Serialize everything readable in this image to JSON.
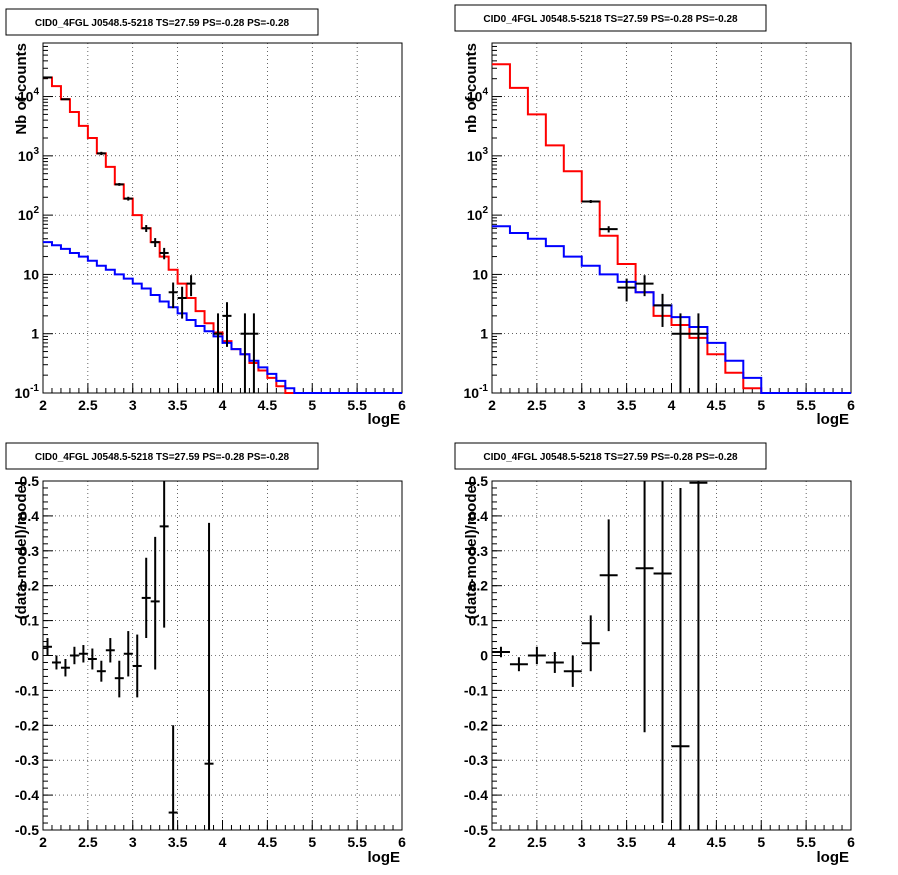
{
  "chart_data": [
    {
      "type": "line",
      "title": "CID0_4FGL J0548.5-5218 TS=27.59 PS=-0.28 PS=-0.28",
      "xlabel": "logE",
      "ylabel": "Nb of counts",
      "xlim": [
        2,
        6
      ],
      "ylim": [
        0.1,
        80000
      ],
      "yscale": "log",
      "grid": true,
      "x_ticks": [
        "2",
        "2.5",
        "3",
        "3.5",
        "4",
        "4.5",
        "5",
        "5.5",
        "6"
      ],
      "y_ticks": [
        {
          "value": 0.1,
          "base": "10",
          "exp": "-1"
        },
        {
          "value": 1,
          "label": "1"
        },
        {
          "value": 10,
          "label": "10"
        },
        {
          "value": 100,
          "base": "10",
          "exp": "2"
        },
        {
          "value": 1000,
          "base": "10",
          "exp": "3"
        },
        {
          "value": 10000,
          "base": "10",
          "exp": "4"
        }
      ],
      "series": [
        {
          "color": "#ff0000",
          "style": "step",
          "edges": [
            2.0,
            2.1,
            2.2,
            2.3,
            2.4,
            2.5,
            2.6,
            2.7,
            2.8,
            2.9,
            3.0,
            3.1,
            3.2,
            3.3,
            3.4,
            3.5,
            3.6,
            3.7,
            3.8,
            3.9,
            4.0,
            4.1,
            4.2,
            4.3,
            4.4,
            4.5,
            4.6,
            4.7,
            4.8,
            4.9,
            5.0,
            5.1,
            5.2,
            5.3,
            5.4,
            5.5,
            5.6,
            5.7,
            5.8,
            5.9,
            6.0
          ],
          "values": [
            21000,
            15000,
            9000,
            5500,
            3200,
            2000,
            1100,
            650,
            330,
            190,
            100,
            60,
            35,
            20,
            12,
            7,
            4,
            2.4,
            1.5,
            1.05,
            0.75,
            0.55,
            0.45,
            0.32,
            0.24,
            0.18,
            0.13,
            0.1,
            0.1,
            0.1,
            0.1,
            0.1,
            0.1,
            0.1,
            0.1,
            0.1,
            0.1,
            0.1,
            0.1,
            0.1
          ]
        },
        {
          "color": "#0000ff",
          "style": "step",
          "edges": [
            2.0,
            2.1,
            2.2,
            2.3,
            2.4,
            2.5,
            2.6,
            2.7,
            2.8,
            2.9,
            3.0,
            3.1,
            3.2,
            3.3,
            3.4,
            3.5,
            3.6,
            3.7,
            3.8,
            3.9,
            4.0,
            4.1,
            4.2,
            4.3,
            4.4,
            4.5,
            4.6,
            4.7,
            4.8,
            4.9,
            5.0,
            5.1,
            5.2,
            5.3,
            5.4,
            5.5,
            5.6,
            5.7,
            5.8,
            5.9,
            6.0
          ],
          "values": [
            35,
            31,
            27,
            23,
            20,
            17,
            14,
            12,
            10,
            8.5,
            7,
            5.8,
            4.5,
            3.5,
            2.8,
            2.2,
            1.7,
            1.35,
            1.1,
            0.9,
            0.7,
            0.55,
            0.45,
            0.35,
            0.27,
            0.21,
            0.16,
            0.12,
            0.1,
            0.1,
            0.1,
            0.1,
            0.1,
            0.1,
            0.1,
            0.1,
            0.1,
            0.1,
            0.1,
            0.1
          ]
        }
      ],
      "points": [
        {
          "x": 2.05,
          "y": 21000,
          "ylo": 20700,
          "yhi": 21300
        },
        {
          "x": 2.25,
          "y": 9000,
          "ylo": 8800,
          "yhi": 9200
        },
        {
          "x": 2.65,
          "y": 1100,
          "ylo": 1030,
          "yhi": 1170
        },
        {
          "x": 2.85,
          "y": 330,
          "ylo": 312,
          "yhi": 348
        },
        {
          "x": 2.95,
          "y": 190,
          "ylo": 176,
          "yhi": 204
        },
        {
          "x": 3.15,
          "y": 60,
          "ylo": 52,
          "yhi": 68
        },
        {
          "x": 3.25,
          "y": 35,
          "ylo": 29,
          "yhi": 41
        },
        {
          "x": 3.35,
          "y": 23,
          "ylo": 18,
          "yhi": 28
        },
        {
          "x": 3.45,
          "y": 5,
          "ylo": 2.7,
          "yhi": 7.3
        },
        {
          "x": 3.55,
          "y": 4,
          "ylo": 1.8,
          "yhi": 6.2
        },
        {
          "x": 3.65,
          "y": 7,
          "ylo": 4.3,
          "yhi": 9.7
        },
        {
          "x": 3.95,
          "y": 1,
          "ylo": 0.1,
          "yhi": 2.2
        },
        {
          "x": 4.05,
          "y": 2,
          "ylo": 0.6,
          "yhi": 3.4
        },
        {
          "x": 4.25,
          "y": 1,
          "ylo": 0.1,
          "yhi": 2.2
        },
        {
          "x": 4.35,
          "y": 1,
          "ylo": 0.1,
          "yhi": 2.2
        }
      ]
    },
    {
      "type": "line",
      "title": "CID0_4FGL J0548.5-5218 TS=27.59 PS=-0.28 PS=-0.28",
      "xlabel": "logE",
      "ylabel": "nb of counts",
      "xlim": [
        2,
        6
      ],
      "ylim": [
        0.1,
        80000
      ],
      "yscale": "log",
      "grid": true,
      "x_ticks": [
        "2",
        "2.5",
        "3",
        "3.5",
        "4",
        "4.5",
        "5",
        "5.5",
        "6"
      ],
      "y_ticks": [
        {
          "value": 0.1,
          "base": "10",
          "exp": "-1"
        },
        {
          "value": 1,
          "label": "1"
        },
        {
          "value": 10,
          "label": "10"
        },
        {
          "value": 100,
          "base": "10",
          "exp": "2"
        },
        {
          "value": 1000,
          "base": "10",
          "exp": "3"
        },
        {
          "value": 10000,
          "base": "10",
          "exp": "4"
        }
      ],
      "series": [
        {
          "color": "#ff0000",
          "style": "step",
          "edges": [
            2.0,
            2.2,
            2.4,
            2.6,
            2.8,
            3.0,
            3.2,
            3.4,
            3.6,
            3.8,
            4.0,
            4.2,
            4.4,
            4.6,
            4.8,
            5.0,
            5.2,
            5.4,
            5.6,
            5.8,
            6.0
          ],
          "values": [
            35000,
            14000,
            5000,
            1500,
            550,
            170,
            45,
            15,
            5,
            2,
            1.4,
            0.85,
            0.45,
            0.22,
            0.12,
            0.1,
            0.1,
            0.1,
            0.1,
            0.1
          ]
        },
        {
          "color": "#0000ff",
          "style": "step",
          "edges": [
            2.0,
            2.2,
            2.4,
            2.6,
            2.8,
            3.0,
            3.2,
            3.4,
            3.6,
            3.8,
            4.0,
            4.2,
            4.4,
            4.6,
            4.8,
            5.0,
            5.2,
            5.4,
            5.6,
            5.8,
            6.0
          ],
          "values": [
            65,
            50,
            40,
            30,
            20,
            14,
            10,
            7.5,
            5,
            3,
            1.9,
            1.3,
            0.7,
            0.35,
            0.18,
            0.1,
            0.1,
            0.1,
            0.1,
            0.1
          ]
        }
      ],
      "points": [
        {
          "x": 3.1,
          "y": 170,
          "ylo": 160,
          "yhi": 180
        },
        {
          "x": 3.3,
          "y": 58,
          "ylo": 51,
          "yhi": 65
        },
        {
          "x": 3.5,
          "y": 6,
          "ylo": 3.5,
          "yhi": 8.5
        },
        {
          "x": 3.7,
          "y": 7,
          "ylo": 4.3,
          "yhi": 9.7
        },
        {
          "x": 3.9,
          "y": 3,
          "ylo": 1.3,
          "yhi": 4.7
        },
        {
          "x": 4.1,
          "y": 1,
          "ylo": 0.1,
          "yhi": 2.2
        },
        {
          "x": 4.3,
          "y": 1,
          "ylo": 0.1,
          "yhi": 2.2
        }
      ]
    },
    {
      "type": "scatter",
      "title": "CID0_4FGL J0548.5-5218 TS=27.59 PS=-0.28 PS=-0.28",
      "xlabel": "logE",
      "ylabel": "(data-model)/model",
      "xlim": [
        2,
        6
      ],
      "ylim": [
        -0.5,
        0.5
      ],
      "grid": true,
      "x_ticks": [
        "2",
        "2.5",
        "3",
        "3.5",
        "4",
        "4.5",
        "5",
        "5.5",
        "6"
      ],
      "y_ticks": [
        "-0.5",
        "-0.4",
        "-0.3",
        "-0.2",
        "-0.1",
        "0",
        "0.1",
        "0.2",
        "0.3",
        "0.4",
        "0.5"
      ],
      "points": [
        {
          "x": 2.05,
          "y": 0.025,
          "ylo": 0.0,
          "yhi": 0.05
        },
        {
          "x": 2.15,
          "y": -0.02,
          "ylo": -0.04,
          "yhi": 0.0
        },
        {
          "x": 2.25,
          "y": -0.035,
          "ylo": -0.06,
          "yhi": -0.01
        },
        {
          "x": 2.35,
          "y": 0.0,
          "ylo": -0.025,
          "yhi": 0.025
        },
        {
          "x": 2.45,
          "y": 0.005,
          "ylo": -0.02,
          "yhi": 0.03
        },
        {
          "x": 2.55,
          "y": -0.01,
          "ylo": -0.04,
          "yhi": 0.02
        },
        {
          "x": 2.65,
          "y": -0.045,
          "ylo": -0.075,
          "yhi": -0.015
        },
        {
          "x": 2.75,
          "y": 0.015,
          "ylo": -0.02,
          "yhi": 0.05
        },
        {
          "x": 2.85,
          "y": -0.065,
          "ylo": -0.12,
          "yhi": -0.015
        },
        {
          "x": 2.95,
          "y": 0.005,
          "ylo": -0.06,
          "yhi": 0.07
        },
        {
          "x": 3.05,
          "y": -0.03,
          "ylo": -0.12,
          "yhi": 0.06
        },
        {
          "x": 3.15,
          "y": 0.165,
          "ylo": 0.05,
          "yhi": 0.28
        },
        {
          "x": 3.25,
          "y": 0.155,
          "ylo": -0.04,
          "yhi": 0.34
        },
        {
          "x": 3.35,
          "y": 0.37,
          "ylo": 0.08,
          "yhi": 0.5
        },
        {
          "x": 3.45,
          "y": -0.45,
          "ylo": -0.5,
          "yhi": -0.2
        },
        {
          "x": 3.85,
          "y": -0.31,
          "ylo": -0.5,
          "yhi": 0.38
        }
      ]
    },
    {
      "type": "scatter",
      "title": "CID0_4FGL J0548.5-5218 TS=27.59 PS=-0.28 PS=-0.28",
      "xlabel": "logE",
      "ylabel": "(data-model)/model",
      "xlim": [
        2,
        6
      ],
      "ylim": [
        -0.5,
        0.5
      ],
      "grid": true,
      "x_ticks": [
        "2",
        "2.5",
        "3",
        "3.5",
        "4",
        "4.5",
        "5",
        "5.5",
        "6"
      ],
      "y_ticks": [
        "-0.5",
        "-0.4",
        "-0.3",
        "-0.2",
        "-0.1",
        "0",
        "0.1",
        "0.2",
        "0.3",
        "0.4",
        "0.5"
      ],
      "points": [
        {
          "x": 2.1,
          "y": 0.01,
          "ylo": -0.005,
          "yhi": 0.025
        },
        {
          "x": 2.3,
          "y": -0.025,
          "ylo": -0.045,
          "yhi": -0.005
        },
        {
          "x": 2.5,
          "y": 0.0,
          "ylo": -0.025,
          "yhi": 0.025
        },
        {
          "x": 2.7,
          "y": -0.02,
          "ylo": -0.05,
          "yhi": 0.01
        },
        {
          "x": 2.9,
          "y": -0.045,
          "ylo": -0.09,
          "yhi": 0.0
        },
        {
          "x": 3.1,
          "y": 0.035,
          "ylo": -0.045,
          "yhi": 0.115
        },
        {
          "x": 3.3,
          "y": 0.23,
          "ylo": 0.07,
          "yhi": 0.39
        },
        {
          "x": 3.7,
          "y": 0.25,
          "ylo": -0.22,
          "yhi": 0.5
        },
        {
          "x": 3.9,
          "y": 0.235,
          "ylo": -0.48,
          "yhi": 0.5
        },
        {
          "x": 4.1,
          "y": -0.26,
          "ylo": -0.5,
          "yhi": 0.48
        },
        {
          "x": 4.3,
          "y": 0.495,
          "ylo": -0.5,
          "yhi": 0.5
        }
      ]
    }
  ]
}
